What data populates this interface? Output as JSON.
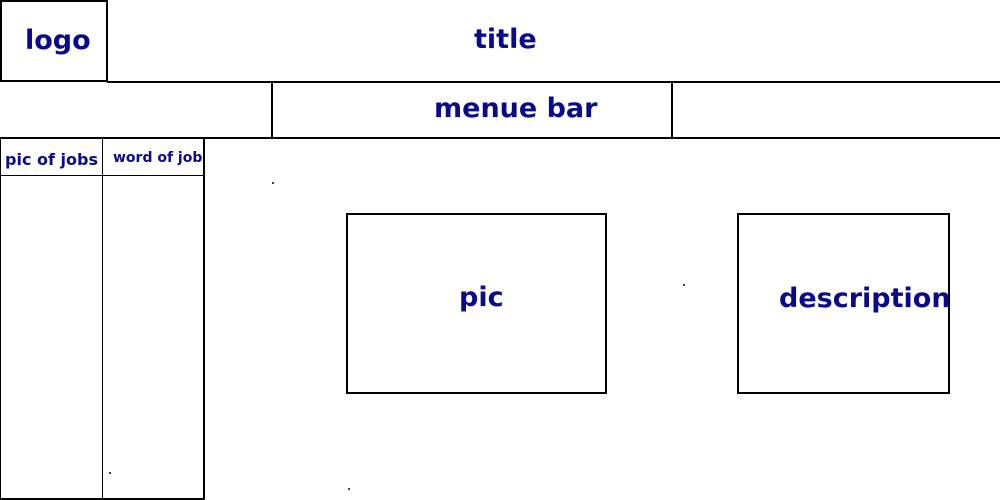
{
  "header": {
    "logo_label": "logo",
    "title_label": "title"
  },
  "nav": {
    "menu_label": "menue bar"
  },
  "sidebar": {
    "col1_label": "pic of jobs",
    "col2_label": "word of job"
  },
  "main": {
    "pic_label": "pic",
    "description_label": "description"
  },
  "colors": {
    "text": "#0a0a8c",
    "lines": "#000000"
  }
}
